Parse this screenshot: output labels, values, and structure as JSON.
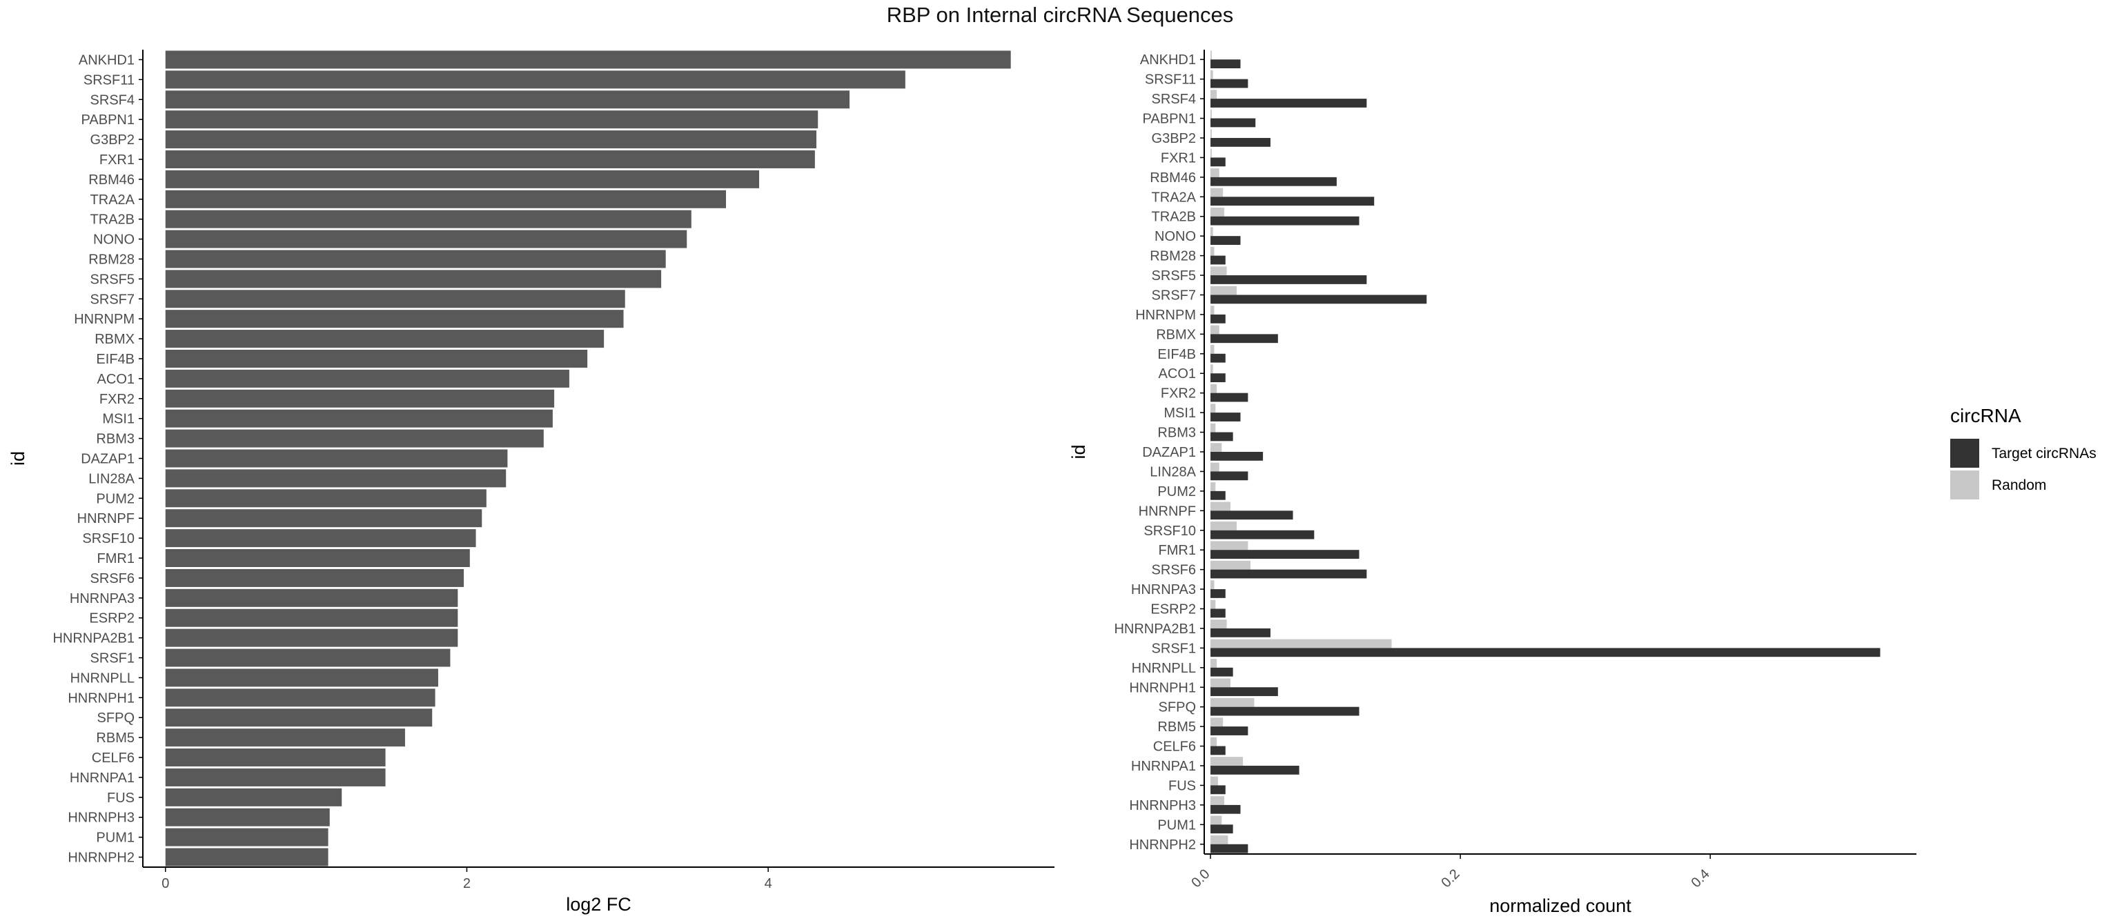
{
  "title": "RBP on Internal circRNA Sequences",
  "colors": {
    "log2fc_bar": "#595959",
    "target": "#333333",
    "random": "#c8c8c8",
    "axis": "#000000",
    "tick_label": "#4d4d4d"
  },
  "chart_data": [
    {
      "type": "bar",
      "orientation": "horizontal",
      "xlabel": "log2 FC",
      "ylabel": "id",
      "xlim": [
        -0.15,
        5.9
      ],
      "xticks": [
        0,
        2,
        4
      ],
      "categories": [
        "ANKHD1",
        "SRSF11",
        "SRSF4",
        "PABPN1",
        "G3BP2",
        "FXR1",
        "RBM46",
        "TRA2A",
        "TRA2B",
        "NONO",
        "RBM28",
        "SRSF5",
        "SRSF7",
        "HNRNPM",
        "RBMX",
        "EIF4B",
        "ACO1",
        "FXR2",
        "MSI1",
        "RBM3",
        "DAZAP1",
        "LIN28A",
        "PUM2",
        "HNRNPF",
        "SRSF10",
        "FMR1",
        "SRSF6",
        "HNRNPA3",
        "ESRP2",
        "HNRNPA2B1",
        "SRSF1",
        "HNRNPLL",
        "HNRNPH1",
        "SFPQ",
        "RBM5",
        "CELF6",
        "HNRNPA1",
        "FUS",
        "HNRNPH3",
        "PUM1",
        "HNRNPH2"
      ],
      "values": [
        5.61,
        4.91,
        4.54,
        4.33,
        4.32,
        4.31,
        3.94,
        3.72,
        3.49,
        3.46,
        3.32,
        3.29,
        3.05,
        3.04,
        2.91,
        2.8,
        2.68,
        2.58,
        2.57,
        2.51,
        2.27,
        2.26,
        2.13,
        2.1,
        2.06,
        2.02,
        1.98,
        1.94,
        1.94,
        1.94,
        1.89,
        1.81,
        1.79,
        1.77,
        1.59,
        1.46,
        1.46,
        1.17,
        1.09,
        1.08,
        1.08
      ],
      "grid": false
    },
    {
      "type": "bar",
      "orientation": "horizontal",
      "grouped": true,
      "xlabel": "normalized count",
      "ylabel": "id",
      "xlim": [
        -0.005,
        0.565
      ],
      "xticks": [
        "0.0",
        "0.2",
        "0.4"
      ],
      "legend": {
        "title": "circRNA",
        "position": "right"
      },
      "categories": [
        "ANKHD1",
        "SRSF11",
        "SRSF4",
        "PABPN1",
        "G3BP2",
        "FXR1",
        "RBM46",
        "TRA2A",
        "TRA2B",
        "NONO",
        "RBM28",
        "SRSF5",
        "SRSF7",
        "HNRNPM",
        "RBMX",
        "EIF4B",
        "ACO1",
        "FXR2",
        "MSI1",
        "RBM3",
        "DAZAP1",
        "LIN28A",
        "PUM2",
        "HNRNPF",
        "SRSF10",
        "FMR1",
        "SRSF6",
        "HNRNPA3",
        "ESRP2",
        "HNRNPA2B1",
        "SRSF1",
        "HNRNPLL",
        "HNRNPH1",
        "SFPQ",
        "RBM5",
        "CELF6",
        "HNRNPA1",
        "FUS",
        "HNRNPH3",
        "PUM1",
        "HNRNPH2"
      ],
      "series": [
        {
          "name": "Target circRNAs",
          "values": [
            0.024,
            0.03,
            0.125,
            0.036,
            0.048,
            0.012,
            0.101,
            0.131,
            0.119,
            0.024,
            0.012,
            0.125,
            0.173,
            0.012,
            0.054,
            0.012,
            0.012,
            0.03,
            0.024,
            0.018,
            0.042,
            0.03,
            0.012,
            0.066,
            0.083,
            0.119,
            0.125,
            0.012,
            0.012,
            0.048,
            0.536,
            0.018,
            0.054,
            0.119,
            0.03,
            0.012,
            0.071,
            0.012,
            0.024,
            0.018,
            0.03
          ]
        },
        {
          "name": "Random",
          "values": [
            0.001,
            0.002,
            0.005,
            0.001,
            0.001,
            0.001,
            0.007,
            0.01,
            0.011,
            0.002,
            0.003,
            0.013,
            0.021,
            0.003,
            0.007,
            0.003,
            0.002,
            0.005,
            0.004,
            0.004,
            0.009,
            0.007,
            0.004,
            0.016,
            0.021,
            0.03,
            0.032,
            0.003,
            0.004,
            0.013,
            0.145,
            0.005,
            0.016,
            0.035,
            0.01,
            0.005,
            0.026,
            0.006,
            0.011,
            0.009,
            0.014
          ]
        }
      ],
      "grid": false
    }
  ]
}
